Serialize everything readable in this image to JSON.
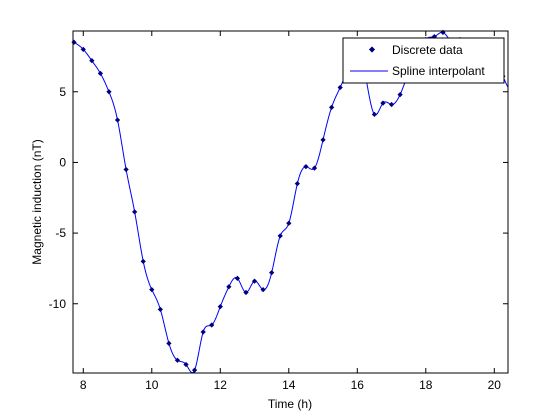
{
  "chart_data": {
    "type": "line",
    "title": "",
    "xlabel": "Time (h)",
    "ylabel": "Magnetic induction (nT)",
    "xlim": [
      7.7,
      20.4
    ],
    "ylim": [
      -14.9,
      9.3
    ],
    "xticks": [
      8,
      10,
      12,
      14,
      16,
      18,
      20
    ],
    "yticks": [
      -10,
      -5,
      0,
      5
    ],
    "grid": false,
    "legend_position": "top-right",
    "colors": {
      "discrete": "#00007F",
      "spline": "#0000FF",
      "axes": "#000000"
    },
    "series": [
      {
        "name": "Discrete data",
        "style": "markers",
        "x": [
          7.73,
          8.0,
          8.25,
          8.5,
          8.75,
          9.0,
          9.25,
          9.5,
          9.75,
          10.0,
          10.25,
          10.5,
          10.75,
          11.0,
          11.25,
          11.5,
          11.75,
          12.0,
          12.25,
          12.5,
          12.75,
          13.0,
          13.25,
          13.5,
          13.75,
          14.0,
          14.25,
          14.5,
          14.75,
          15.0,
          15.25,
          15.5,
          15.75,
          16.0,
          16.25,
          16.5,
          16.75,
          17.0,
          17.25,
          17.5,
          17.75,
          18.0,
          18.25,
          18.5,
          18.75,
          19.0,
          19.25,
          19.5,
          19.75,
          20.0,
          20.25
        ],
        "y": [
          8.5,
          8.0,
          7.2,
          6.3,
          5.0,
          3.0,
          -0.5,
          -3.5,
          -7.0,
          -9.0,
          -10.4,
          -12.8,
          -14.0,
          -14.3,
          -14.7,
          -12.0,
          -11.5,
          -10.2,
          -8.8,
          -8.2,
          -9.2,
          -8.4,
          -9.0,
          -7.8,
          -5.2,
          -4.3,
          -1.5,
          -0.3,
          -0.4,
          1.6,
          3.9,
          5.3,
          6.9,
          8.2,
          6.0,
          3.4,
          4.2,
          4.1,
          4.8,
          6.3,
          7.4,
          8.7,
          8.9,
          9.2,
          8.6,
          8.7,
          8.3,
          8.1,
          7.8,
          7.3,
          6.1
        ]
      },
      {
        "name": "Spline interpolant",
        "style": "line"
      }
    ]
  }
}
